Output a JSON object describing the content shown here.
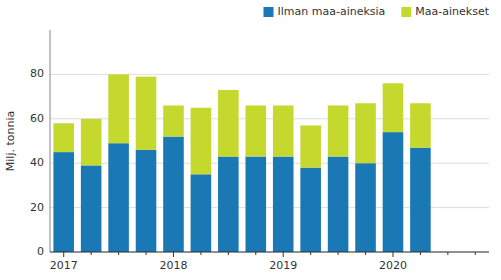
{
  "chart_data": {
    "type": "bar",
    "stacked": true,
    "grid": true,
    "legend": "upper right",
    "ylabel": "Milj. tonnia",
    "categories": [
      "2017",
      null,
      null,
      null,
      "2018",
      null,
      null,
      null,
      "2019",
      null,
      null,
      null,
      "2020",
      null,
      null,
      null
    ],
    "series": [
      {
        "name": "Ilman maa-aineksia",
        "color": "#1a79b4",
        "values": [
          45,
          39,
          49,
          46,
          52,
          35,
          43,
          43,
          43,
          38,
          43,
          40,
          54,
          47,
          0,
          0
        ]
      },
      {
        "name": "Maa-ainekset",
        "color": "#c5d82d",
        "values": [
          13,
          21,
          31,
          33,
          14,
          30,
          30,
          23,
          23,
          19,
          23,
          27,
          22,
          20,
          0,
          0
        ]
      }
    ],
    "ylim": [
      0,
      100
    ],
    "yticks": [
      0,
      20,
      40,
      60,
      80
    ]
  }
}
